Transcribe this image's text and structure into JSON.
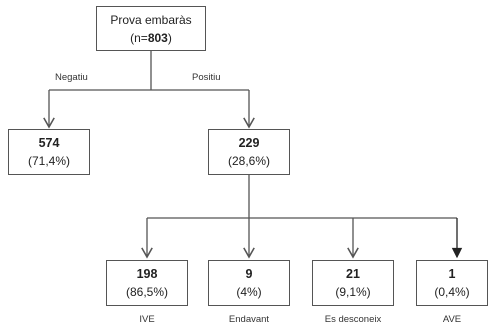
{
  "root": {
    "line1": "Prova embaràs",
    "n_prefix": "(n=",
    "n_value": "803",
    "n_suffix": ")"
  },
  "branches": {
    "negative_label": "Negatiu",
    "positive_label": "Positiu"
  },
  "negative": {
    "count": "574",
    "pct": "(71,4%)"
  },
  "positive": {
    "count": "229",
    "pct": "(28,6%)"
  },
  "outcomes": [
    {
      "count": "198",
      "pct": "(86,5%)",
      "label": "IVE"
    },
    {
      "count": "9",
      "pct": "(4%)",
      "label": "Endavant"
    },
    {
      "count": "21",
      "pct": "(9,1%)",
      "label": "Es desconeix"
    },
    {
      "count": "1",
      "pct": "(0,4%)",
      "label": "AVE"
    }
  ],
  "colors": {
    "line": "#555555",
    "border": "#555555",
    "text": "#222222"
  }
}
